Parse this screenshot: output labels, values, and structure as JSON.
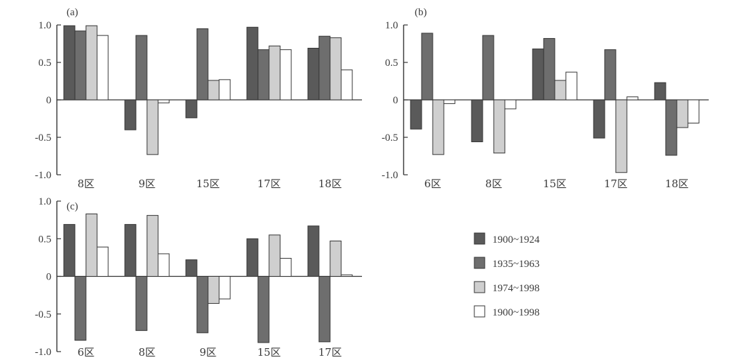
{
  "chart_data": [
    {
      "type": "bar",
      "panel_label": "(a)",
      "categories": [
        "8区",
        "9区",
        "15区",
        "17区",
        "18区"
      ],
      "yticks": [
        "1.0",
        "0.5",
        "0",
        "-0.5",
        "-1.0"
      ],
      "ylim": [
        -1.0,
        1.0
      ],
      "series": [
        {
          "values": [
            0.99,
            -0.4,
            -0.24,
            0.97,
            0.69
          ]
        },
        {
          "values": [
            0.92,
            0.86,
            0.95,
            0.67,
            0.85
          ]
        },
        {
          "values": [
            0.99,
            -0.73,
            0.26,
            0.72,
            0.83
          ]
        },
        {
          "values": [
            0.86,
            -0.04,
            0.27,
            0.67,
            0.4
          ]
        }
      ]
    },
    {
      "type": "bar",
      "panel_label": "(b)",
      "categories": [
        "6区",
        "8区",
        "15区",
        "17区",
        "18区"
      ],
      "yticks": [
        "1.0",
        "0.5",
        "0",
        "-0.5",
        "-1.0"
      ],
      "ylim": [
        -1.0,
        1.0
      ],
      "series": [
        {
          "values": [
            -0.39,
            -0.56,
            0.68,
            -0.51,
            0.23
          ]
        },
        {
          "values": [
            0.89,
            0.86,
            0.82,
            0.67,
            -0.74
          ]
        },
        {
          "values": [
            -0.73,
            -0.71,
            0.26,
            -0.97,
            -0.37
          ]
        },
        {
          "values": [
            -0.05,
            -0.12,
            0.37,
            0.04,
            -0.31
          ]
        }
      ]
    },
    {
      "type": "bar",
      "panel_label": "(c)",
      "categories": [
        "6区",
        "8区",
        "9区",
        "15区",
        "17区"
      ],
      "yticks": [
        "1.0",
        "0.5",
        "0",
        "-0.5",
        "-1.0"
      ],
      "ylim": [
        -1.0,
        1.0
      ],
      "series": [
        {
          "values": [
            0.69,
            0.69,
            0.22,
            0.5,
            0.67
          ]
        },
        {
          "values": [
            -0.85,
            -0.72,
            -0.75,
            -0.88,
            -0.87
          ]
        },
        {
          "values": [
            0.83,
            0.81,
            -0.36,
            0.55,
            0.47
          ]
        },
        {
          "values": [
            0.39,
            0.3,
            -0.3,
            0.24,
            0.02
          ]
        }
      ]
    }
  ],
  "legend": [
    {
      "label": "1900~1924",
      "color": "#5a5a5a"
    },
    {
      "label": "1935~1963",
      "color": "#6e6e6e"
    },
    {
      "label": "1974~1998",
      "color": "#cfcfcf"
    },
    {
      "label": "1900~1998",
      "color": "#ffffff"
    }
  ],
  "colors": {
    "axis": "#333333",
    "bar_edge": "#333333",
    "series": [
      "#5a5a5a",
      "#6e6e6e",
      "#cfcfcf",
      "#ffffff"
    ]
  }
}
